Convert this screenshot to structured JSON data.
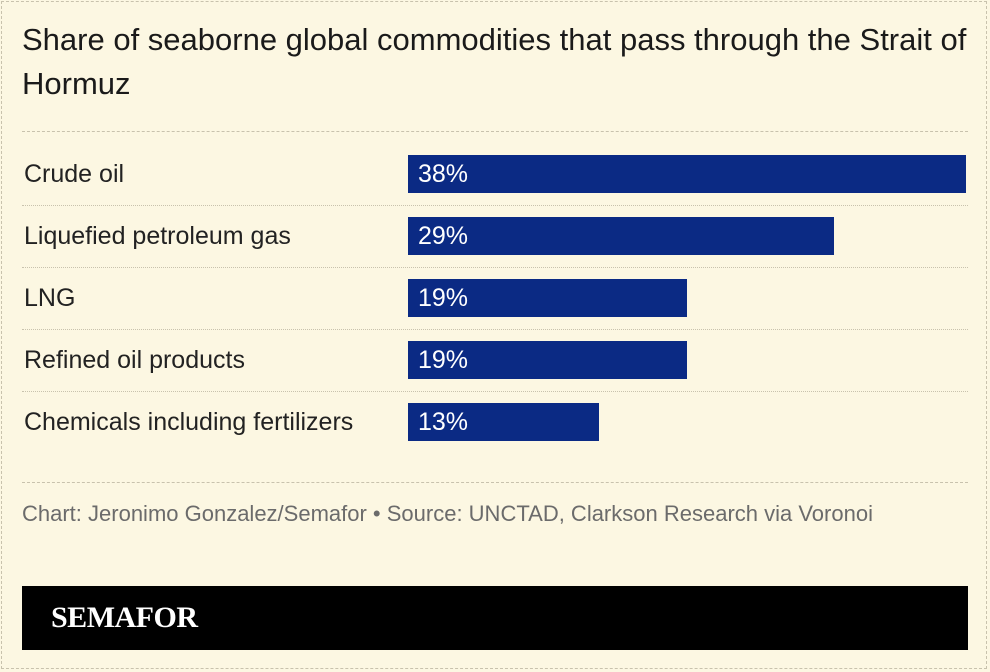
{
  "chart_data": {
    "type": "bar",
    "orientation": "horizontal",
    "title": "Share of seaborne global commodities that pass through the Strait of Hormuz",
    "categories": [
      "Crude oil",
      "Liquefied petroleum gas",
      "LNG",
      "Refined oil products",
      "Chemicals including fertilizers"
    ],
    "values": [
      38,
      29,
      19,
      19,
      13
    ],
    "value_labels": [
      "38%",
      "29%",
      "19%",
      "19%",
      "13%"
    ],
    "color": "#0b2a84",
    "source": "Chart: Jeronimo Gonzalez/Semafor • Source: UNCTAD, Clarkson Research via Voronoi",
    "brand": "SEMAFOR"
  }
}
